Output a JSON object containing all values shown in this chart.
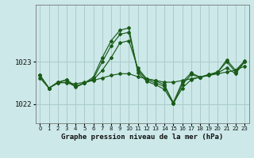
{
  "title": "Graphe pression niveau de la mer (hPa)",
  "background_color": "#cce8e8",
  "grid_color": "#aacccc",
  "line_color": "#1a5c1a",
  "x_labels": [
    "0",
    "1",
    "2",
    "3",
    "4",
    "5",
    "6",
    "7",
    "8",
    "9",
    "10",
    "11",
    "12",
    "13",
    "14",
    "15",
    "16",
    "17",
    "18",
    "19",
    "20",
    "21",
    "22",
    "23"
  ],
  "ylim": [
    1021.55,
    1024.35
  ],
  "yticks": [
    1022,
    1023
  ],
  "series": [
    [
      1022.62,
      1022.38,
      1022.52,
      1022.5,
      1022.48,
      1022.52,
      1022.56,
      1022.62,
      1022.68,
      1022.72,
      1022.72,
      1022.65,
      1022.6,
      1022.56,
      1022.52,
      1022.52,
      1022.56,
      1022.6,
      1022.64,
      1022.68,
      1022.72,
      1022.76,
      1022.8,
      1022.9
    ],
    [
      1022.68,
      1022.38,
      1022.5,
      1022.52,
      1022.42,
      1022.5,
      1022.58,
      1022.8,
      1023.1,
      1023.45,
      1023.5,
      1022.85,
      1022.6,
      1022.55,
      1022.46,
      1022.02,
      1022.38,
      1022.58,
      1022.64,
      1022.68,
      1022.74,
      1022.86,
      1022.72,
      1023.0
    ],
    [
      1022.68,
      1022.38,
      1022.5,
      1022.58,
      1022.42,
      1022.5,
      1022.6,
      1023.0,
      1023.38,
      1023.65,
      1023.7,
      1022.8,
      1022.58,
      1022.5,
      1022.42,
      1022.04,
      1022.52,
      1022.74,
      1022.64,
      1022.7,
      1022.76,
      1023.0,
      1022.76,
      1023.0
    ],
    [
      1022.68,
      1022.38,
      1022.52,
      1022.58,
      1022.4,
      1022.5,
      1022.64,
      1023.1,
      1023.5,
      1023.75,
      1023.8,
      1022.75,
      1022.54,
      1022.46,
      1022.35,
      1022.01,
      1022.46,
      1022.7,
      1022.64,
      1022.7,
      1022.76,
      1023.05,
      1022.8,
      1023.02
    ]
  ]
}
